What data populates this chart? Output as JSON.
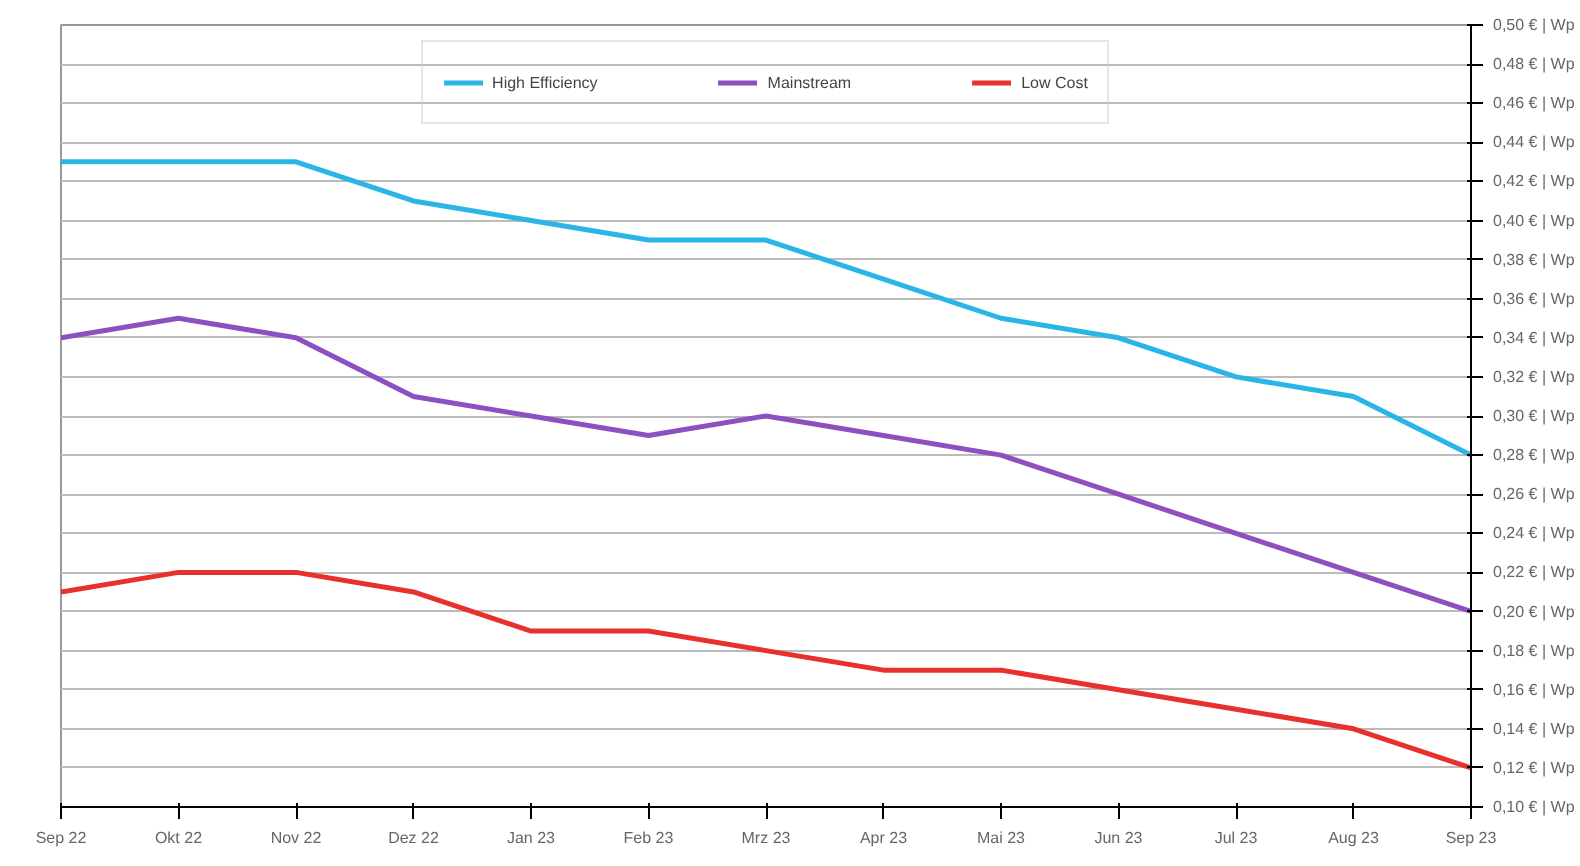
{
  "chart_data": {
    "type": "line",
    "categories": [
      "Sep 22",
      "Okt 22",
      "Nov 22",
      "Dez 22",
      "Jan 23",
      "Feb 23",
      "Mrz 23",
      "Apr 23",
      "Mai 23",
      "Jun 23",
      "Jul 23",
      "Aug 23",
      "Sep 23"
    ],
    "series": [
      {
        "name": "High Efficiency",
        "color": "#29b6e6",
        "values": [
          0.43,
          0.43,
          0.43,
          0.41,
          0.4,
          0.39,
          0.39,
          0.37,
          0.35,
          0.34,
          0.32,
          0.31,
          0.28
        ]
      },
      {
        "name": "Mainstream",
        "color": "#8e4fc0",
        "values": [
          0.34,
          0.35,
          0.34,
          0.31,
          0.3,
          0.29,
          0.3,
          0.29,
          0.28,
          0.26,
          0.24,
          0.22,
          0.2
        ]
      },
      {
        "name": "Low Cost",
        "color": "#e8302c",
        "values": [
          0.21,
          0.22,
          0.22,
          0.21,
          0.19,
          0.19,
          0.18,
          0.17,
          0.17,
          0.16,
          0.15,
          0.14,
          0.12
        ]
      }
    ],
    "ylim": [
      0.1,
      0.5
    ],
    "yticks": [
      {
        "value": 0.1,
        "label": "0,10 € | Wp"
      },
      {
        "value": 0.12,
        "label": "0,12 € | Wp"
      },
      {
        "value": 0.14,
        "label": "0,14 € | Wp"
      },
      {
        "value": 0.16,
        "label": "0,16 € | Wp"
      },
      {
        "value": 0.18,
        "label": "0,18 € | Wp"
      },
      {
        "value": 0.2,
        "label": "0,20 € | Wp"
      },
      {
        "value": 0.22,
        "label": "0,22 € | Wp"
      },
      {
        "value": 0.24,
        "label": "0,24 € | Wp"
      },
      {
        "value": 0.26,
        "label": "0,26 € | Wp"
      },
      {
        "value": 0.28,
        "label": "0,28 € | Wp"
      },
      {
        "value": 0.3,
        "label": "0,30 € | Wp"
      },
      {
        "value": 0.32,
        "label": "0,32 € | Wp"
      },
      {
        "value": 0.34,
        "label": "0,34 € | Wp"
      },
      {
        "value": 0.36,
        "label": "0,36 € | Wp"
      },
      {
        "value": 0.38,
        "label": "0,38 € | Wp"
      },
      {
        "value": 0.4,
        "label": "0,40 € | Wp"
      },
      {
        "value": 0.42,
        "label": "0,42 € | Wp"
      },
      {
        "value": 0.44,
        "label": "0,44 € | Wp"
      },
      {
        "value": 0.46,
        "label": "0,46 € | Wp"
      },
      {
        "value": 0.48,
        "label": "0,48 € | Wp"
      },
      {
        "value": 0.5,
        "label": "0,50 € | Wp"
      }
    ],
    "grid": "y",
    "legend": "top",
    "marker": "none",
    "line_style": "solid"
  }
}
